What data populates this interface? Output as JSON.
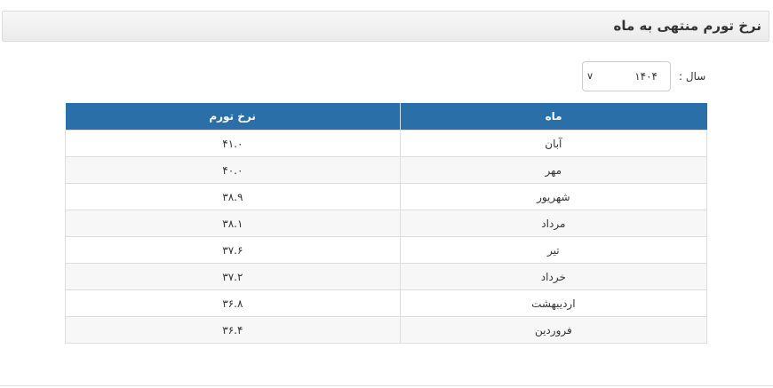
{
  "header": {
    "title": "نرخ تورم منتهی به ماه"
  },
  "filter": {
    "label": "سال :",
    "selected_year": "۱۴۰۴",
    "chevron_icon": "chevron-down-icon"
  },
  "table": {
    "columns": [
      "ماه",
      "نرخ تورم"
    ],
    "rows": [
      {
        "month": "آبان",
        "rate": "۴۱.۰"
      },
      {
        "month": "مهر",
        "rate": "۴۰.۰"
      },
      {
        "month": "شهریور",
        "rate": "۳۸.۹"
      },
      {
        "month": "مرداد",
        "rate": "۳۸.۱"
      },
      {
        "month": "تیر",
        "rate": "۳۷.۶"
      },
      {
        "month": "خرداد",
        "rate": "۳۷.۲"
      },
      {
        "month": "اردیبهشت",
        "rate": "۳۶.۸"
      },
      {
        "month": "فروردین",
        "rate": "۳۶.۴"
      }
    ],
    "header_color": "#2b6fa8"
  }
}
